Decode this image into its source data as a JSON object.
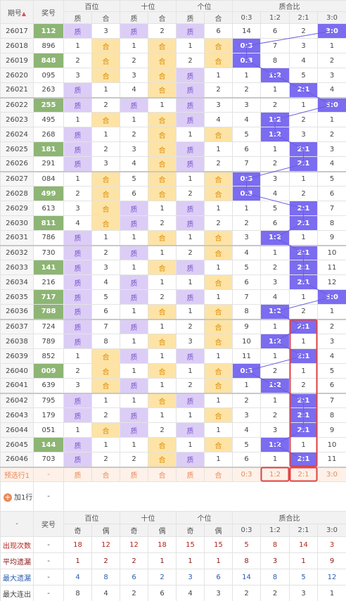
{
  "header": {
    "period": "期号",
    "number": "奖号",
    "groups": [
      "百位",
      "十位",
      "个位",
      "质合比"
    ],
    "sub": [
      "质",
      "合",
      "质",
      "合",
      "质",
      "合",
      "0:3",
      "1:2",
      "2:1",
      "3:0"
    ]
  },
  "rows": [
    {
      "period": "26017",
      "number": "112",
      "highlighted": true,
      "cells": [
        "质",
        3,
        "质",
        2,
        "质",
        6
      ],
      "ratio": [
        14,
        6,
        2,
        "3:0"
      ]
    },
    {
      "period": "26018",
      "number": "896",
      "highlighted": false,
      "cells": [
        1,
        "合",
        1,
        "合",
        1,
        "合"
      ],
      "ratio": [
        "0:3",
        7,
        3,
        1
      ]
    },
    {
      "period": "26019",
      "number": "848",
      "highlighted": true,
      "cells": [
        2,
        "合",
        2,
        "合",
        2,
        "合"
      ],
      "ratio": [
        "0:3",
        8,
        4,
        2
      ]
    },
    {
      "period": "26020",
      "number": "095",
      "highlighted": false,
      "cells": [
        3,
        "合",
        3,
        "合",
        "质",
        1
      ],
      "ratio": [
        1,
        "1:2",
        5,
        3
      ]
    },
    {
      "period": "26021",
      "number": "263",
      "highlighted": false,
      "cells": [
        "质",
        1,
        4,
        "合",
        "质",
        2
      ],
      "ratio": [
        2,
        1,
        "2:1",
        4
      ]
    },
    {
      "period": "26022",
      "number": "255",
      "highlighted": true,
      "cells": [
        "质",
        2,
        "质",
        1,
        "质",
        3
      ],
      "ratio": [
        3,
        2,
        1,
        "3:0"
      ]
    },
    {
      "period": "26023",
      "number": "495",
      "highlighted": false,
      "cells": [
        1,
        "合",
        1,
        "合",
        "质",
        4
      ],
      "ratio": [
        4,
        "1:2",
        2,
        1
      ]
    },
    {
      "period": "26024",
      "number": "268",
      "highlighted": false,
      "cells": [
        "质",
        1,
        2,
        "合",
        1,
        "合"
      ],
      "ratio": [
        5,
        "1:2",
        3,
        2
      ]
    },
    {
      "period": "26025",
      "number": "181",
      "highlighted": true,
      "cells": [
        "质",
        2,
        3,
        "合",
        "质",
        1
      ],
      "ratio": [
        6,
        1,
        "2:1",
        3
      ]
    },
    {
      "period": "26026",
      "number": "291",
      "highlighted": false,
      "cells": [
        "质",
        3,
        4,
        "合",
        "质",
        2
      ],
      "ratio": [
        7,
        2,
        "2:1",
        4
      ]
    },
    {
      "period": "26027",
      "number": "084",
      "highlighted": false,
      "cells": [
        1,
        "合",
        5,
        "合",
        1,
        "合"
      ],
      "ratio": [
        "0:3",
        3,
        1,
        5
      ]
    },
    {
      "period": "26028",
      "number": "499",
      "highlighted": true,
      "cells": [
        2,
        "合",
        6,
        "合",
        2,
        "合"
      ],
      "ratio": [
        "0:3",
        4,
        2,
        6
      ]
    },
    {
      "period": "26029",
      "number": "613",
      "highlighted": false,
      "cells": [
        3,
        "合",
        "质",
        1,
        "质",
        1
      ],
      "ratio": [
        1,
        5,
        "2:1",
        7
      ]
    },
    {
      "period": "26030",
      "number": "811",
      "highlighted": true,
      "cells": [
        4,
        "合",
        "质",
        2,
        "质",
        2
      ],
      "ratio": [
        2,
        6,
        "2:1",
        8
      ]
    },
    {
      "period": "26031",
      "number": "786",
      "highlighted": false,
      "cells": [
        "质",
        1,
        1,
        "合",
        1,
        "合"
      ],
      "ratio": [
        3,
        "1:2",
        1,
        9
      ]
    },
    {
      "period": "26032",
      "number": "730",
      "highlighted": false,
      "cells": [
        "质",
        2,
        "质",
        1,
        2,
        "合"
      ],
      "ratio": [
        4,
        1,
        "2:1",
        10
      ]
    },
    {
      "period": "26033",
      "number": "141",
      "highlighted": true,
      "cells": [
        "质",
        3,
        1,
        "合",
        "质",
        1
      ],
      "ratio": [
        5,
        2,
        "2:1",
        11
      ]
    },
    {
      "period": "26034",
      "number": "216",
      "highlighted": false,
      "cells": [
        "质",
        4,
        "质",
        1,
        1,
        "合"
      ],
      "ratio": [
        6,
        3,
        "2:1",
        12
      ]
    },
    {
      "period": "26035",
      "number": "717",
      "highlighted": true,
      "cells": [
        "质",
        5,
        "质",
        2,
        "质",
        1
      ],
      "ratio": [
        7,
        4,
        1,
        "3:0"
      ]
    },
    {
      "period": "26036",
      "number": "788",
      "highlighted": true,
      "cells": [
        "质",
        6,
        1,
        "合",
        1,
        "合"
      ],
      "ratio": [
        8,
        "1:2",
        2,
        1
      ]
    },
    {
      "period": "26037",
      "number": "724",
      "highlighted": false,
      "cells": [
        "质",
        7,
        "质",
        1,
        2,
        "合"
      ],
      "ratio": [
        9,
        1,
        "2:1",
        2
      ]
    },
    {
      "period": "26038",
      "number": "789",
      "highlighted": false,
      "cells": [
        "质",
        8,
        1,
        "合",
        3,
        "合"
      ],
      "ratio": [
        10,
        "1:2",
        1,
        3
      ]
    },
    {
      "period": "26039",
      "number": "852",
      "highlighted": false,
      "cells": [
        1,
        "合",
        "质",
        1,
        "质",
        1
      ],
      "ratio": [
        11,
        1,
        "2:1",
        4
      ]
    },
    {
      "period": "26040",
      "number": "009",
      "highlighted": true,
      "cells": [
        2,
        "合",
        1,
        "合",
        1,
        "合"
      ],
      "ratio": [
        "0:3",
        2,
        1,
        5
      ]
    },
    {
      "period": "26041",
      "number": "639",
      "highlighted": false,
      "cells": [
        3,
        "合",
        "质",
        1,
        2,
        "合"
      ],
      "ratio": [
        1,
        "1:2",
        2,
        6
      ]
    },
    {
      "period": "26042",
      "number": "795",
      "highlighted": false,
      "cells": [
        "质",
        1,
        1,
        "合",
        "质",
        1
      ],
      "ratio": [
        2,
        1,
        "2:1",
        7
      ]
    },
    {
      "period": "26043",
      "number": "179",
      "highlighted": false,
      "cells": [
        "质",
        2,
        "质",
        1,
        1,
        "合"
      ],
      "ratio": [
        3,
        2,
        "2:1",
        8
      ]
    },
    {
      "period": "26044",
      "number": "051",
      "highlighted": false,
      "cells": [
        1,
        "合",
        "质",
        2,
        "质",
        1
      ],
      "ratio": [
        4,
        3,
        "2:1",
        9
      ]
    },
    {
      "period": "26045",
      "number": "144",
      "highlighted": true,
      "cells": [
        "质",
        1,
        1,
        "合",
        1,
        "合"
      ],
      "ratio": [
        5,
        "1:2",
        1,
        10
      ]
    },
    {
      "period": "26046",
      "number": "703",
      "highlighted": false,
      "cells": [
        "质",
        2,
        2,
        "合",
        "质",
        1
      ],
      "ratio": [
        6,
        1,
        "2:1",
        11
      ]
    }
  ],
  "preset": {
    "label": "预选行1",
    "number": "-",
    "cells": [
      "质",
      "合",
      "质",
      "合",
      "质",
      "合",
      "0:3",
      "1:2",
      "2:1",
      "3:0"
    ]
  },
  "add_row": {
    "label": "加1行",
    "number": "-"
  },
  "stats": {
    "header": {
      "label": "-",
      "number": "奖号",
      "groups": [
        "百位",
        "十位",
        "个位",
        "质合比"
      ],
      "sub": [
        "奇",
        "偶",
        "奇",
        "偶",
        "奇",
        "偶",
        "0:3",
        "1:2",
        "2:1",
        "3:0"
      ]
    },
    "rows": [
      {
        "label": "出现次数",
        "number": "-",
        "color": "#b3261e",
        "values": [
          18,
          12,
          12,
          18,
          15,
          15,
          5,
          8,
          14,
          3
        ]
      },
      {
        "label": "平均遗漏",
        "number": "-",
        "color": "#8b1a1a",
        "values": [
          1,
          2,
          2,
          1,
          1,
          1,
          8,
          3,
          1,
          9
        ]
      },
      {
        "label": "最大遗漏",
        "number": "-",
        "color": "#2a5db0",
        "values": [
          4,
          8,
          6,
          2,
          3,
          6,
          14,
          8,
          5,
          12
        ]
      },
      {
        "label": "最大连出",
        "number": "-",
        "color": "#444444",
        "values": [
          8,
          4,
          2,
          6,
          4,
          3,
          2,
          2,
          3,
          1
        ]
      }
    ]
  }
}
